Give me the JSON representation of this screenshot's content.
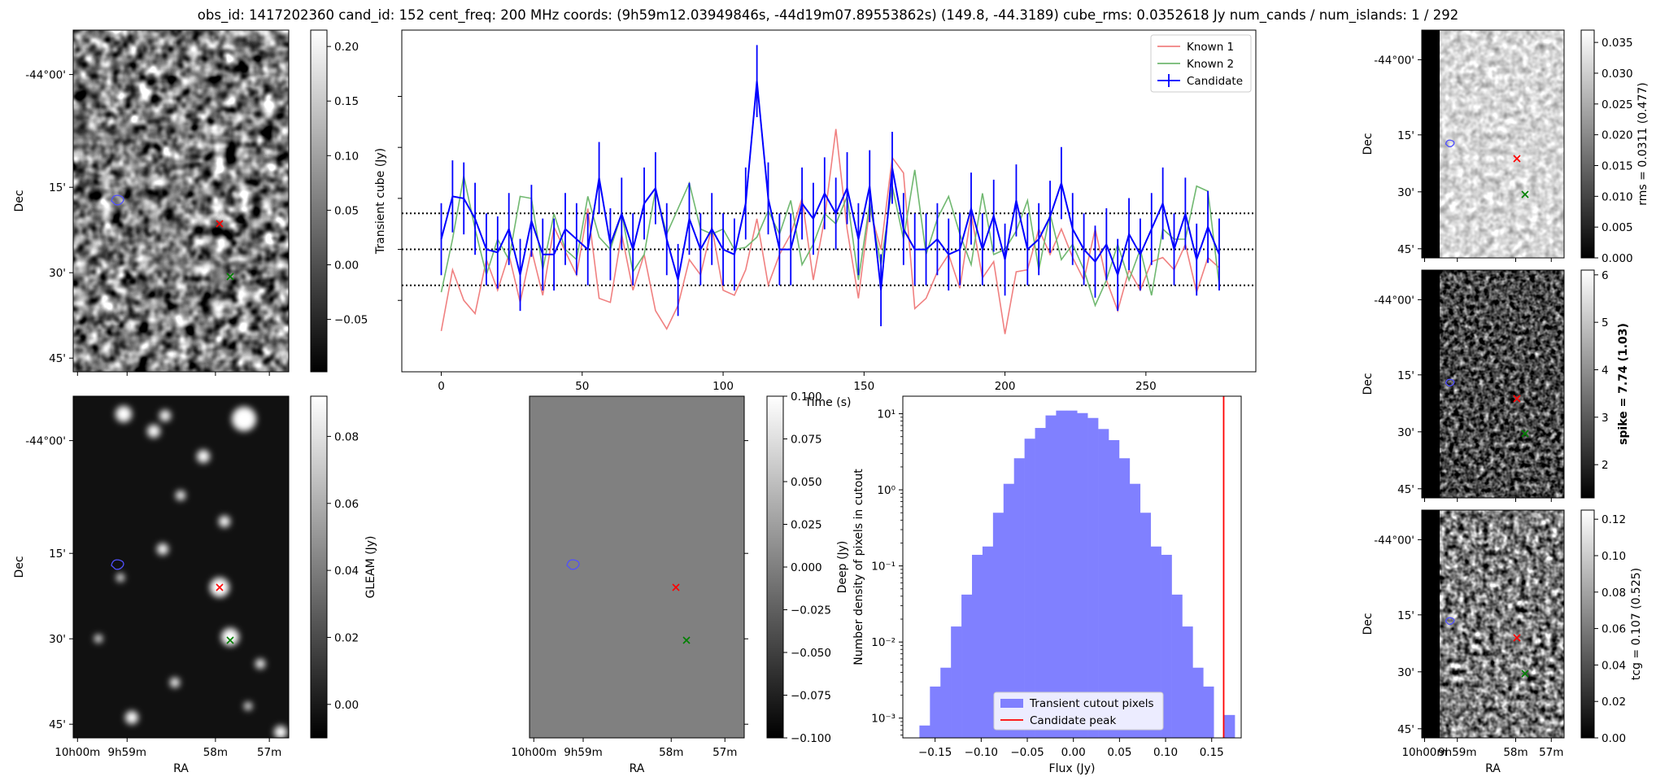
{
  "title": "obs_id: 1417202360 cand_id: 152 cent_freq: 200 MHz coords: (9h59m12.03949846s, -44d19m07.89553862s) (149.8, -44.3189) cube_rms: 0.0352618 Jy num_cands / num_islands: 1 / 292",
  "colors": {
    "known1": "#f08080",
    "known2": "#70b870",
    "candidate": "#0000ff",
    "hist": "#8080ff",
    "peak": "#ff0000",
    "red_marker": "#ff0000",
    "green_marker": "#008000",
    "contour": "#5050ff"
  },
  "image_axes": {
    "dec_ticks": [
      "-44°00'",
      "15'",
      "30'",
      "45'"
    ],
    "ra_ticks": [
      "10h00m",
      "9h59m",
      "58m",
      "57m"
    ],
    "ra_label": "RA",
    "dec_label": "Dec"
  },
  "chart_data": [
    {
      "type": "line",
      "panel": "lightcurve",
      "xlabel": "Time (s)",
      "ylabel": "Transient cube (Jy)",
      "xlim": [
        -14,
        289
      ],
      "ylim": [
        -0.12,
        0.215
      ],
      "x_ticks": [
        0,
        50,
        100,
        150,
        200,
        250
      ],
      "legend": "top-right",
      "hlines": [
        0.0353,
        0.0,
        -0.0353
      ],
      "x": [
        0,
        4,
        8,
        12,
        16,
        20,
        24,
        28,
        32,
        36,
        40,
        44,
        48,
        52,
        56,
        60,
        64,
        68,
        72,
        76,
        80,
        84,
        88,
        92,
        96,
        100,
        104,
        108,
        112,
        116,
        120,
        124,
        128,
        132,
        136,
        140,
        144,
        148,
        152,
        156,
        160,
        164,
        168,
        172,
        176,
        180,
        184,
        188,
        192,
        196,
        200,
        204,
        208,
        212,
        216,
        220,
        224,
        228,
        232,
        236,
        240,
        244,
        248,
        252,
        256,
        260,
        264,
        268,
        272,
        276
      ],
      "series": [
        {
          "name": "Known 1",
          "values": [
            -0.08,
            -0.02,
            -0.05,
            -0.063,
            -0.01,
            -0.04,
            -0.005,
            -0.052,
            0.0,
            -0.045,
            0.022,
            -0.002,
            -0.025,
            0.04,
            -0.048,
            -0.052,
            0.015,
            -0.04,
            -0.005,
            -0.06,
            -0.078,
            -0.055,
            -0.01,
            -0.025,
            0.022,
            -0.04,
            -0.045,
            -0.02,
            0.03,
            -0.035,
            -0.005,
            0.015,
            0.05,
            -0.03,
            0.03,
            0.118,
            0.02,
            -0.048,
            0.04,
            0.0,
            0.09,
            0.075,
            -0.058,
            -0.048,
            -0.022,
            -0.005,
            -0.038,
            0.035,
            -0.028,
            -0.012,
            -0.083,
            -0.022,
            -0.02,
            0.02,
            -0.005,
            0.02,
            -0.008,
            -0.03,
            0.02,
            -0.03,
            -0.06,
            -0.02,
            -0.04,
            -0.012,
            -0.008,
            -0.02,
            0.005,
            -0.042,
            -0.008,
            -0.018
          ]
        },
        {
          "name": "Known 2",
          "values": [
            -0.042,
            0.01,
            0.072,
            0.02,
            -0.025,
            0.01,
            -0.01,
            0.052,
            0.05,
            -0.02,
            0.035,
            0.0,
            -0.01,
            0.052,
            0.012,
            0.0,
            0.035,
            -0.022,
            -0.005,
            0.058,
            0.015,
            0.04,
            0.065,
            0.02,
            0.015,
            0.02,
            0.0,
            0.002,
            0.012,
            0.038,
            0.015,
            0.048,
            -0.015,
            0.005,
            0.035,
            0.025,
            0.052,
            -0.03,
            0.045,
            -0.015,
            0.062,
            0.01,
            0.078,
            -0.005,
            0.03,
            0.052,
            0.015,
            -0.015,
            0.055,
            -0.005,
            0.0,
            0.018,
            0.048,
            -0.02,
            0.035,
            -0.01,
            0.005,
            -0.02,
            -0.055,
            -0.03,
            0.005,
            -0.03,
            0.0,
            -0.045,
            0.02,
            0.01,
            0.01,
            0.062,
            0.057,
            -0.035
          ]
        },
        {
          "name": "Candidate",
          "values": [
            0.01,
            0.052,
            0.05,
            0.03,
            0.0,
            -0.003,
            0.02,
            -0.025,
            0.028,
            -0.005,
            -0.005,
            0.02,
            0.01,
            0.0,
            0.07,
            0.005,
            0.035,
            0.0,
            0.045,
            0.06,
            0.01,
            -0.03,
            0.03,
            0.0,
            0.02,
            0.0,
            -0.005,
            0.045,
            0.165,
            0.05,
            0.0,
            0.0,
            0.045,
            0.03,
            0.055,
            0.035,
            0.06,
            0.01,
            0.062,
            -0.04,
            0.08,
            0.02,
            0.0,
            0.0,
            0.01,
            -0.005,
            0.0,
            0.04,
            0.0,
            0.033,
            -0.01,
            0.048,
            0.0,
            0.01,
            0.032,
            0.065,
            0.02,
            0.0,
            -0.012,
            0.005,
            -0.025,
            0.015,
            -0.005,
            0.02,
            0.045,
            0.0,
            0.035,
            -0.01,
            0.022,
            -0.005
          ]
        }
      ],
      "candidate_yerr": 0.0353
    },
    {
      "type": "bar",
      "panel": "histogram",
      "xlabel": "Flux (Jy)",
      "ylabel": "Number density of pixels in cutout",
      "yscale": "log",
      "xlim": [
        -0.185,
        0.182
      ],
      "ylim": [
        0.00055,
        17
      ],
      "x_ticks": [
        -0.15,
        -0.1,
        -0.05,
        0.0,
        0.05,
        0.1,
        0.15
      ],
      "x_tick_labels": [
        "−0.15",
        "−0.10",
        "−0.05",
        "0.00",
        "0.05",
        "0.10",
        "0.15"
      ],
      "y_ticks": [
        0.001,
        0.01,
        0.1,
        1,
        10
      ],
      "y_tick_labels": [
        "10⁻³",
        "10⁻²",
        "10⁻¹",
        "10⁰",
        "10¹"
      ],
      "bin_edges": [
        -0.167,
        -0.1556,
        -0.1442,
        -0.1328,
        -0.1214,
        -0.11,
        -0.0986,
        -0.0872,
        -0.0758,
        -0.0644,
        -0.053,
        -0.0416,
        -0.0302,
        -0.0188,
        -0.0074,
        0.004,
        0.0154,
        0.0268,
        0.0382,
        0.0496,
        0.061,
        0.0724,
        0.0838,
        0.0952,
        0.1066,
        0.118,
        0.1294,
        0.1408,
        0.1522,
        0.1636,
        0.175
      ],
      "counts": [
        0.0008,
        0.0026,
        0.0046,
        0.016,
        0.042,
        0.14,
        0.18,
        0.5,
        1.2,
        2.6,
        4.7,
        6.5,
        9.5,
        11.0,
        11.0,
        10.2,
        8.8,
        6.3,
        4.5,
        2.6,
        1.2,
        0.5,
        0.18,
        0.14,
        0.042,
        0.016,
        0.0046,
        0.0026,
        0.0,
        0.0011
      ],
      "peak": 0.163,
      "legend_entries": [
        "Transient cutout pixels",
        "Candidate peak"
      ],
      "legend": "lower-center"
    }
  ],
  "colorbars": {
    "transient": {
      "ticks": [
        "0.20",
        "0.15",
        "0.10",
        "0.05",
        "0.00",
        "−0.05"
      ],
      "values": [
        0.2,
        0.15,
        0.1,
        0.05,
        0.0,
        -0.05
      ],
      "range": [
        -0.098,
        0.215
      ],
      "label": ""
    },
    "gleam": {
      "ticks": [
        "0.08",
        "0.06",
        "0.04",
        "0.02",
        "0.00"
      ],
      "values": [
        0.08,
        0.06,
        0.04,
        0.02,
        0.0
      ],
      "range": [
        -0.01,
        0.092
      ],
      "label": "GLEAM (Jy)"
    },
    "deep": {
      "ticks": [
        "0.100",
        "0.075",
        "0.050",
        "0.025",
        "0.000",
        "−0.025",
        "−0.050",
        "−0.075",
        "−0.100"
      ],
      "values": [
        0.1,
        0.075,
        0.05,
        0.025,
        0.0,
        -0.025,
        -0.05,
        -0.075,
        -0.1
      ],
      "range": [
        -0.1,
        0.1
      ],
      "label": "Deep (Jy)"
    },
    "rms": {
      "ticks": [
        "0.035",
        "0.030",
        "0.025",
        "0.020",
        "0.015",
        "0.010",
        "0.005",
        "0.000"
      ],
      "values": [
        0.035,
        0.03,
        0.025,
        0.02,
        0.015,
        0.01,
        0.005,
        0.0
      ],
      "range": [
        0.0,
        0.037
      ],
      "label": "rms = 0.0311 (0.477)"
    },
    "spike": {
      "ticks": [
        "6",
        "5",
        "4",
        "3",
        "2"
      ],
      "values": [
        6,
        5,
        4,
        3,
        2
      ],
      "range": [
        1.3,
        6.1
      ],
      "label": "spike = 7.74 (1.03)"
    },
    "tcg": {
      "ticks": [
        "0.12",
        "0.10",
        "0.08",
        "0.06",
        "0.04",
        "0.02",
        "0.00"
      ],
      "values": [
        0.12,
        0.1,
        0.08,
        0.06,
        0.04,
        0.02,
        0.0
      ],
      "range": [
        0.0,
        0.125
      ],
      "label": "tcg = 0.107 (0.525)"
    }
  }
}
